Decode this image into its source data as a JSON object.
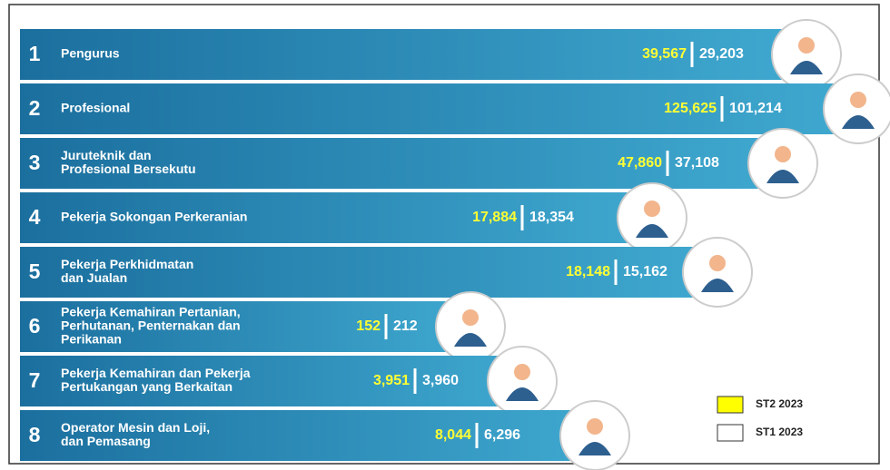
{
  "rows": [
    {
      "number": "1",
      "label": [
        "Pengurus"
      ],
      "st2": "39,567",
      "st1": "29,203"
    },
    {
      "number": "2",
      "label": [
        "Profesional"
      ],
      "st2": "125,625",
      "st1": "101,214"
    },
    {
      "number": "3",
      "label": [
        "Juruteknik dan",
        "Profesional Bersekutu"
      ],
      "st2": "47,860",
      "st1": "37,108"
    },
    {
      "number": "4",
      "label": [
        "Pekerja Sokongan Perkeranian"
      ],
      "st2": "17,884",
      "st1": "18,354"
    },
    {
      "number": "5",
      "label": [
        "Pekerja Perkhidmatan",
        "dan Jualan"
      ],
      "st2": "18,148",
      "st1": "15,162"
    },
    {
      "number": "6",
      "label": [
        "Pekerja Kemahiran Pertanian,",
        "Perhutanan, Penternakan dan",
        "Perikanan"
      ],
      "st2": "152",
      "st1": "212"
    },
    {
      "number": "7",
      "label": [
        "Pekerja Kemahiran dan Pekerja",
        "Pertukangan yang Berkaitan"
      ],
      "st2": "3,951",
      "st1": "3,960"
    },
    {
      "number": "8",
      "label": [
        "Operator Mesin dan Loji,",
        "dan Pemasang"
      ],
      "st2": "8,044",
      "st1": "6,296"
    }
  ],
  "legend": [
    {
      "label": "ST2 2023",
      "color": "#ffff00"
    },
    {
      "label": "ST1 2023",
      "color": "#ffffff"
    }
  ]
}
